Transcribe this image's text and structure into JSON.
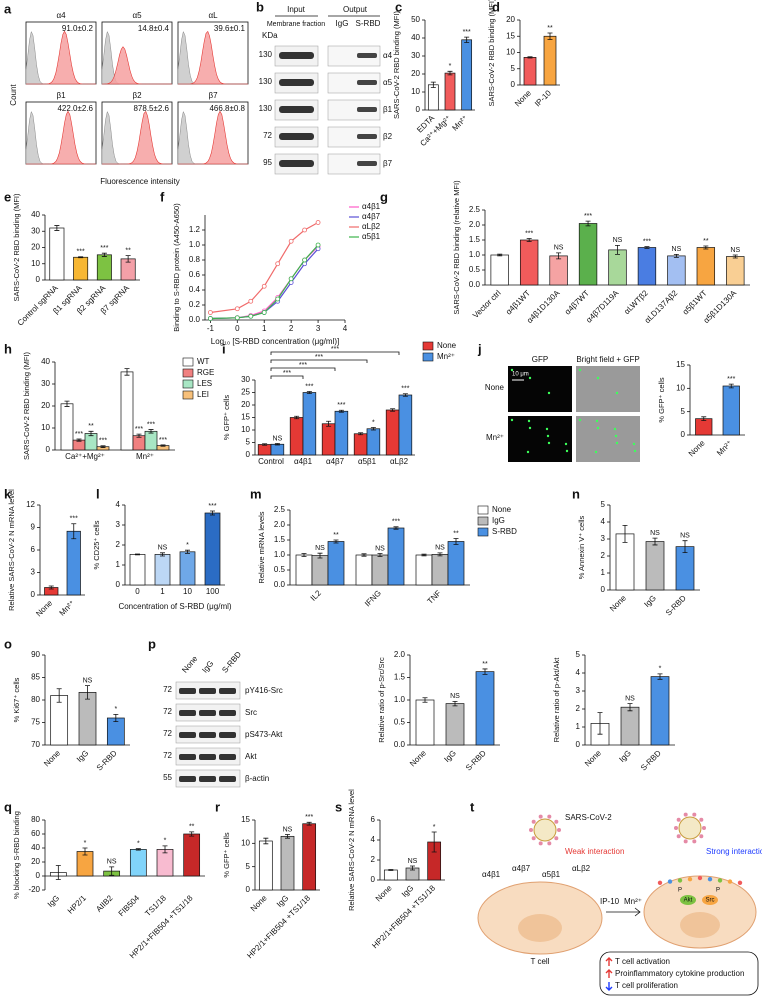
{
  "panel_letters": [
    "a",
    "b",
    "c",
    "d",
    "e",
    "f",
    "g",
    "h",
    "i",
    "j",
    "k",
    "l",
    "m",
    "n",
    "o",
    "p",
    "q",
    "r",
    "s",
    "t"
  ],
  "hist_a": {
    "ylabel": "Count",
    "xlabel": "Fluorescence intensity",
    "histograms": [
      {
        "label": "α4",
        "value": "91.0±0.2"
      },
      {
        "label": "α5",
        "value": "14.8±0.4"
      },
      {
        "label": "αL",
        "value": "39.6±0.1"
      },
      {
        "label": "β1",
        "value": "422.0±2.6"
      },
      {
        "label": "β2",
        "value": "878.5±2.6"
      },
      {
        "label": "β7",
        "value": "466.8±0.8"
      }
    ]
  },
  "blot_b": {
    "kda": "KDa",
    "input": "Input",
    "output": "Output",
    "input_lane": "Membrane fraction",
    "output_lanes": [
      "IgG",
      "S-RBD"
    ],
    "rows": [
      {
        "weight": 130,
        "label": "α4"
      },
      {
        "weight": 130,
        "label": "α5"
      },
      {
        "weight": 130,
        "label": "β1"
      },
      {
        "weight": 72,
        "label": "β2"
      },
      {
        "weight": 95,
        "label": "β7"
      }
    ]
  },
  "images_j": {
    "columns": [
      "GFP",
      "Bright field + GFP"
    ],
    "rows": [
      "None",
      "Mn²⁺"
    ],
    "scale": "10 μm"
  },
  "blot_p": {
    "lanes": [
      "None",
      "IgG",
      "S-RBD"
    ],
    "rows": [
      {
        "weight": 72,
        "label": "pY416-Src"
      },
      {
        "weight": 72,
        "label": "Src"
      },
      {
        "weight": 72,
        "label": "pS473-Akt"
      },
      {
        "weight": 72,
        "label": "Akt"
      },
      {
        "weight": 55,
        "label": "β-actin"
      }
    ]
  },
  "diagram_t": {
    "virus": "SARS-CoV-2",
    "weak": "Weak interaction",
    "strong": "Strong interaction",
    "integrins": [
      "α4β1",
      "α4β7",
      "α5β1",
      "αLβ2"
    ],
    "stimuli": [
      "IP-10",
      "Mn²⁺"
    ],
    "cell": "T cell",
    "kinases": [
      "Akt",
      "Src"
    ],
    "phospho": "P",
    "outcomes": [
      "T cell activation",
      "Proinflammatory cytokine production",
      "T cell proliferation"
    ]
  },
  "chart_data": [
    {
      "type": "bar",
      "categories": [
        "EDTA",
        "Ca²⁺+Mg²⁺",
        "Mn²⁺"
      ],
      "values": [
        14,
        20.5,
        39
      ],
      "errors": [
        1.5,
        1,
        1.5
      ],
      "colors": [
        "#ffffff",
        "#f15b5b",
        "#4a90e2"
      ],
      "sig": [
        null,
        "*",
        "***"
      ],
      "ylabel": "SARS-CoV-2 RBD binding (MFI)",
      "ylim": [
        0,
        50
      ],
      "yticks": [
        0,
        10,
        20,
        30,
        40,
        50
      ]
    },
    {
      "type": "bar",
      "categories": [
        "None",
        "IP-10"
      ],
      "values": [
        8.5,
        15
      ],
      "errors": [
        0.2,
        1
      ],
      "colors": [
        "#f15b5b",
        "#f7a541"
      ],
      "sig": [
        null,
        "**"
      ],
      "ylabel": "SARS-CoV-2 RBD binding (MFI)",
      "ylim": [
        0,
        20
      ],
      "yticks": [
        0,
        5,
        10,
        15,
        20
      ]
    },
    {
      "type": "bar",
      "categories": [
        "Control sgRNA",
        "β1 sgRNA",
        "β2 sgRNA",
        "β7 sgRNA"
      ],
      "values": [
        32,
        14,
        15.5,
        13
      ],
      "errors": [
        1.5,
        0.3,
        1,
        2
      ],
      "colors": [
        "#ffffff",
        "#f7b733",
        "#7dc242",
        "#f4a0a8"
      ],
      "sig": [
        null,
        "***",
        "***",
        "**"
      ],
      "ylabel": "SARS-CoV-2 RBD binding (MFI)",
      "ylim": [
        0,
        40
      ],
      "yticks": [
        0,
        10,
        20,
        30,
        40
      ]
    },
    {
      "type": "line",
      "ylabel": "Binding to S-RBD protein (A450-A650)",
      "xlabel": "Log₁₀ [S-RBD concentration (μg/ml)]",
      "x": [
        -1,
        0,
        0.5,
        1,
        1.5,
        2,
        2.5,
        3
      ],
      "series": [
        {
          "name": "α4β1",
          "color": "#ff5cc8",
          "values": [
            0.02,
            0.03,
            0.06,
            0.12,
            0.3,
            0.55,
            0.8,
            0.98
          ]
        },
        {
          "name": "α4β7",
          "color": "#5b4fd6",
          "values": [
            0.02,
            0.03,
            0.05,
            0.1,
            0.25,
            0.5,
            0.75,
            0.95
          ]
        },
        {
          "name": "αLβ2",
          "color": "#f06a6a",
          "values": [
            0.1,
            0.15,
            0.25,
            0.45,
            0.75,
            1.05,
            1.2,
            1.3
          ]
        },
        {
          "name": "α5β1",
          "color": "#3cb44b",
          "values": [
            0.02,
            0.03,
            0.05,
            0.1,
            0.28,
            0.55,
            0.8,
            1
          ]
        }
      ],
      "xlim": [
        -1.2,
        4
      ],
      "xticks": [
        -1,
        0,
        1,
        2,
        3,
        4
      ],
      "ylim": [
        0,
        1.4
      ],
      "yticks": [
        {
          "value": 0,
          "label": "0.0"
        },
        0.2,
        0.4,
        0.6,
        0.8,
        {
          "value": 1,
          "label": "1.0"
        },
        1.2
      ]
    },
    {
      "type": "bar",
      "categories": [
        "Vector ctrl",
        "α4β1WT",
        "α4β1D130A",
        "α4β7WT",
        "α4β7D119A",
        "αLWTβ2",
        "αLD137Aβ2",
        "α5β1WT",
        "α5β1D130A"
      ],
      "values": [
        1,
        1.5,
        0.97,
        2.05,
        1.17,
        1.25,
        0.97,
        1.25,
        0.95
      ],
      "errors": [
        0.03,
        0.05,
        0.1,
        0.08,
        0.15,
        0.03,
        0.05,
        0.05,
        0.05
      ],
      "colors": [
        "#ffffff",
        "#f15b5b",
        "#f5a3a3",
        "#5bb04c",
        "#a8d89a",
        "#4a7de2",
        "#a3bff2",
        "#f7a541",
        "#f9cf94"
      ],
      "sig": [
        null,
        "***",
        "NS",
        "***",
        "NS",
        "***",
        "NS",
        "**",
        "NS"
      ],
      "ylabel": "SARS-CoV-2 RBD binding (relative MFI)",
      "ylim": [
        0,
        2.5
      ],
      "yticks": [
        {
          "value": 0,
          "label": "0.0"
        },
        0.5,
        {
          "value": 1,
          "label": "1.0"
        },
        1.5,
        {
          "value": 2,
          "label": "2.0"
        },
        2.5
      ]
    },
    {
      "type": "bar",
      "categories": [
        "Ca²⁺+Mg²⁺",
        "Mn²⁺"
      ],
      "series": [
        {
          "name": "WT",
          "color": "#ffffff",
          "values": [
            21,
            35.5
          ],
          "errors": [
            1.2,
            1.5
          ]
        },
        {
          "name": "RGE",
          "color": "#f08080",
          "values": [
            4.5,
            6.5
          ],
          "errors": [
            0.5,
            0.7
          ],
          "sig": [
            "***",
            "***"
          ]
        },
        {
          "name": "LES",
          "color": "#a8e6c4",
          "values": [
            7.5,
            8.5
          ],
          "errors": [
            1,
            0.8
          ],
          "sig": [
            "**",
            "***"
          ]
        },
        {
          "name": "LEI",
          "color": "#f7c07a",
          "values": [
            1.5,
            2
          ],
          "errors": [
            0.4,
            0.3
          ],
          "sig": [
            "***",
            "***"
          ]
        }
      ],
      "ylabel": "SARS-CoV-2 RBD binding (MFI)",
      "ylim": [
        0,
        40
      ],
      "yticks": [
        0,
        10,
        20,
        30,
        40
      ]
    },
    {
      "type": "bar",
      "categories": [
        "Control",
        "α4β1",
        "α4β7",
        "α5β1",
        "αLβ2"
      ],
      "series": [
        {
          "name": "None",
          "color": "#e53935",
          "values": [
            4.2,
            15,
            12.5,
            8.5,
            18
          ],
          "errors": [
            0.3,
            0.5,
            1,
            0.4,
            0.5
          ]
        },
        {
          "name": "Mn²⁺",
          "color": "#4a90e2",
          "values": [
            4.3,
            25,
            17.5,
            10.5,
            24
          ],
          "errors": [
            0.3,
            0.4,
            0.4,
            0.5,
            0.5
          ],
          "sig": [
            "NS",
            "***",
            "***",
            "*",
            "***"
          ]
        }
      ],
      "brackets": [
        "***",
        "***",
        "***",
        "***"
      ],
      "ylabel": "% GFP⁺ cells",
      "ylim": [
        0,
        30
      ],
      "yticks": [
        0,
        5,
        10,
        15,
        20,
        25,
        30
      ]
    },
    {
      "type": "bar",
      "categories": [
        "None",
        "Mn²⁺"
      ],
      "values": [
        3.5,
        10.5
      ],
      "errors": [
        0.4,
        0.4
      ],
      "colors": [
        "#e53935",
        "#4a90e2"
      ],
      "sig": [
        null,
        "***"
      ],
      "ylabel": "% GFP⁺ cells",
      "ylim": [
        0,
        15
      ],
      "yticks": [
        0,
        5,
        10,
        15
      ]
    },
    {
      "type": "bar",
      "categories": [
        "None",
        "Mn²⁺"
      ],
      "values": [
        1,
        8.5
      ],
      "errors": [
        0.2,
        1
      ],
      "colors": [
        "#e53935",
        "#4a90e2"
      ],
      "sig": [
        null,
        "***"
      ],
      "ylabel": "Relative SARS-CoV-2 N mRNA level",
      "ylim": [
        0,
        12
      ],
      "yticks": [
        0,
        3,
        6,
        9,
        12
      ]
    },
    {
      "type": "bar",
      "categories": [
        "0",
        "1",
        "10",
        "100"
      ],
      "values": [
        1.53,
        1.53,
        1.66,
        3.6
      ],
      "errors": [
        0.02,
        0.08,
        0.08,
        0.1
      ],
      "colors": [
        "#ffffff",
        "#bcd7f5",
        "#6fa8e8",
        "#2b6cc4"
      ],
      "sig": [
        null,
        "NS",
        "*",
        "***"
      ],
      "xlabel": "Concentration of S-RBD (μg/ml)",
      "ylabel": "% CD25⁺ cells",
      "ylim": [
        0,
        4
      ],
      "yticks": [
        0,
        1,
        2,
        3,
        4
      ]
    },
    {
      "type": "bar",
      "categories": [
        "IL2",
        "IFNG",
        "TNF"
      ],
      "series": [
        {
          "name": "None",
          "color": "#ffffff",
          "values": [
            1,
            1,
            1
          ],
          "errors": [
            0.05,
            0.04,
            0.03
          ]
        },
        {
          "name": "IgG",
          "color": "#bbbbbb",
          "values": [
            0.98,
            1,
            1.02
          ],
          "errors": [
            0.08,
            0.05,
            0.05
          ],
          "sig": [
            "NS",
            "NS",
            "NS"
          ]
        },
        {
          "name": "S-RBD",
          "color": "#4a90e2",
          "values": [
            1.45,
            1.9,
            1.45
          ],
          "errors": [
            0.05,
            0.04,
            0.1
          ],
          "sig": [
            "**",
            "***",
            "**"
          ]
        }
      ],
      "ylabel": "Relative mRNA levels",
      "ylim": [
        0,
        2.5
      ],
      "yticks": [
        {
          "value": 0,
          "label": "0.0"
        },
        0.5,
        {
          "value": 1,
          "label": "1.0"
        },
        1.5,
        {
          "value": 2,
          "label": "2.0"
        },
        2.5
      ]
    },
    {
      "type": "bar",
      "categories": [
        "None",
        "IgG",
        "S-RBD"
      ],
      "values": [
        3.3,
        2.85,
        2.55
      ],
      "errors": [
        0.5,
        0.2,
        0.35
      ],
      "colors": [
        "#ffffff",
        "#bbbbbb",
        "#4a90e2"
      ],
      "sig": [
        null,
        "NS",
        "NS"
      ],
      "ylabel": "% Annexin V⁺ cells",
      "ylim": [
        0,
        5
      ],
      "yticks": [
        0,
        1,
        2,
        3,
        4,
        5
      ]
    },
    {
      "type": "bar",
      "categories": [
        "None",
        "IgG",
        "S-RBD"
      ],
      "values": [
        81,
        81.7,
        76
      ],
      "errors": [
        1.5,
        1.5,
        0.8
      ],
      "colors": [
        "#ffffff",
        "#bbbbbb",
        "#4a90e2"
      ],
      "sig": [
        null,
        "NS",
        "*"
      ],
      "ylabel": "% Ki67⁺ cells",
      "ylim": [
        70,
        90
      ],
      "yticks": [
        70,
        75,
        80,
        85,
        90
      ]
    },
    {
      "type": "bar",
      "categories": [
        "None",
        "IgG",
        "S-RBD"
      ],
      "values": [
        1,
        0.92,
        1.63
      ],
      "errors": [
        0.05,
        0.05,
        0.06
      ],
      "colors": [
        "#ffffff",
        "#bbbbbb",
        "#4a90e2"
      ],
      "sig": [
        null,
        "NS",
        "**"
      ],
      "ylabel": "Relative ratio of p-Src/Src",
      "ylim": [
        0,
        2
      ],
      "yticks": [
        {
          "value": 0,
          "label": "0.0"
        },
        0.5,
        {
          "value": 1,
          "label": "1.0"
        },
        1.5,
        {
          "value": 2,
          "label": "2.0"
        }
      ]
    },
    {
      "type": "bar",
      "categories": [
        "None",
        "IgG",
        "S-RBD"
      ],
      "values": [
        1.2,
        2.1,
        3.8
      ],
      "errors": [
        0.6,
        0.2,
        0.15
      ],
      "colors": [
        "#ffffff",
        "#bbbbbb",
        "#4a90e2"
      ],
      "sig": [
        null,
        "NS",
        "*"
      ],
      "ylabel": "Relative ratio of p-Akt/Akt",
      "ylim": [
        0,
        5
      ],
      "yticks": [
        0,
        1,
        2,
        3,
        4,
        5
      ]
    },
    {
      "type": "bar",
      "categories": [
        "IgG",
        "HP2/1",
        "AIIB2",
        "FIB504",
        "TS1/18",
        "HP2/1+FIB504 +TS1/18"
      ],
      "values": [
        5,
        35,
        7,
        38,
        38,
        60
      ],
      "errors": [
        10,
        5,
        6,
        1,
        5,
        3
      ],
      "colors": [
        "#ffffff",
        "#f7a541",
        "#7dc242",
        "#81d4fa",
        "#f8bbd0",
        "#c62828"
      ],
      "sig": [
        null,
        "*",
        "NS",
        "*",
        "*",
        "**"
      ],
      "ylabel": "% blocking S-RBD binding",
      "ylim": [
        -20,
        80
      ],
      "yticks": [
        -20,
        0,
        20,
        40,
        60,
        80
      ]
    },
    {
      "type": "bar",
      "categories": [
        "None",
        "IgG",
        "HP2/1+FIB504 +TS1/18"
      ],
      "values": [
        10.5,
        11.5,
        14.2
      ],
      "errors": [
        0.6,
        0.4,
        0.3
      ],
      "colors": [
        "#ffffff",
        "#bbbbbb",
        "#c62828"
      ],
      "sig": [
        null,
        "NS",
        "***"
      ],
      "ylabel": "% GFP⁺ cells",
      "ylim": [
        0,
        15
      ],
      "yticks": [
        0,
        5,
        10,
        15
      ]
    },
    {
      "type": "bar",
      "categories": [
        "None",
        "IgG",
        "HP2/1+FIB504 +TS1/18"
      ],
      "values": [
        1,
        1.2,
        3.8
      ],
      "errors": [
        0.05,
        0.2,
        1
      ],
      "colors": [
        "#ffffff",
        "#bbbbbb",
        "#c62828"
      ],
      "sig": [
        null,
        "NS",
        "*"
      ],
      "ylabel": "Relative SARS-CoV-2 N mRNA level",
      "ylim": [
        0,
        6
      ],
      "yticks": [
        0,
        2,
        4,
        6
      ]
    }
  ]
}
